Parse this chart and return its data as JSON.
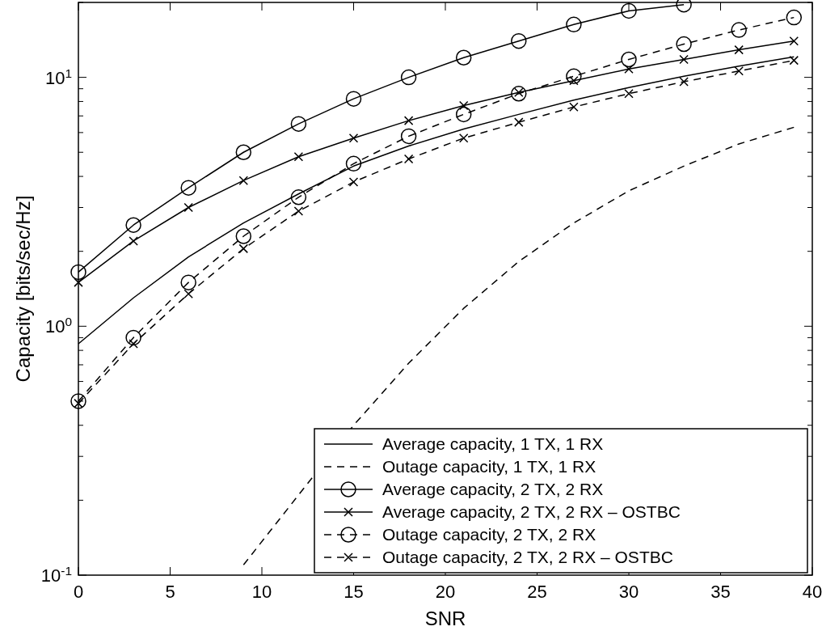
{
  "chart_data": {
    "type": "line",
    "xlabel": "SNR",
    "ylabel": "Capacity [bits/sec/Hz]",
    "log": "y",
    "xlim": [
      0,
      40
    ],
    "ylim": [
      0.1,
      20
    ],
    "xticks": [
      0,
      5,
      10,
      15,
      20,
      25,
      30,
      35,
      40
    ],
    "yticks": [
      {
        "value": 0.1,
        "label": "10$^{-1}$"
      },
      {
        "value": 0.2,
        "label": null
      },
      {
        "value": 0.3,
        "label": null
      },
      {
        "value": 0.4,
        "label": null
      },
      {
        "value": 0.5,
        "label": null
      },
      {
        "value": 0.6,
        "label": null
      },
      {
        "value": 0.7,
        "label": null
      },
      {
        "value": 0.8,
        "label": null
      },
      {
        "value": 0.9,
        "label": null
      },
      {
        "value": 1,
        "label": "10$^{0}$"
      },
      {
        "value": 2,
        "label": null
      },
      {
        "value": 3,
        "label": null
      },
      {
        "value": 4,
        "label": null
      },
      {
        "value": 5,
        "label": null
      },
      {
        "value": 6,
        "label": null
      },
      {
        "value": 7,
        "label": null
      },
      {
        "value": 8,
        "label": null
      },
      {
        "value": 9,
        "label": null
      },
      {
        "value": 10,
        "label": "10$^{1}$"
      },
      {
        "value": 20,
        "label": null
      }
    ],
    "grid": false,
    "legend": "bottom right",
    "series": [
      {
        "name": "Average capacity, 1 TX, 1 RX",
        "color": "#000000",
        "marker": "none",
        "line_style": "solid",
        "x": [
          0,
          3,
          6,
          9,
          12,
          15,
          18,
          21,
          24,
          27,
          30,
          33,
          36,
          39
        ],
        "values": [
          0.85,
          1.3,
          1.9,
          2.6,
          3.4,
          4.4,
          5.3,
          6.2,
          7.1,
          8.1,
          9.1,
          10.1,
          11.1,
          12.1
        ]
      },
      {
        "name": "Outage capacity, 1 TX, 1 RX",
        "color": "#000000",
        "marker": "none",
        "line_style": "dashed",
        "x": [
          9,
          12,
          15,
          18,
          21,
          24,
          27,
          30,
          33,
          36,
          39
        ],
        "values": [
          0.11,
          0.21,
          0.4,
          0.71,
          1.18,
          1.82,
          2.6,
          3.5,
          4.4,
          5.4,
          6.3
        ]
      },
      {
        "name": "Average capacity, 2 TX, 2 RX",
        "color": "#000000",
        "marker": "circle",
        "line_style": "solid",
        "x": [
          0,
          3,
          6,
          9,
          12,
          15,
          18,
          21,
          24,
          27,
          30,
          33
        ],
        "values": [
          1.65,
          2.55,
          3.6,
          5.0,
          6.5,
          8.2,
          10,
          12,
          14,
          16.3,
          18.5,
          19.6
        ]
      },
      {
        "name": "Average capacity, 2 TX, 2 RX – OSTBC",
        "color": "#000000",
        "marker": "cross",
        "line_style": "solid",
        "x": [
          0,
          3,
          6,
          9,
          12,
          15,
          18,
          21,
          24,
          27,
          30,
          33,
          36,
          39
        ],
        "values": [
          1.5,
          2.2,
          3.0,
          3.85,
          4.8,
          5.7,
          6.7,
          7.7,
          8.7,
          9.7,
          10.8,
          11.8,
          12.9,
          14.0
        ]
      },
      {
        "name": "Outage capacity, 2 TX, 2 RX",
        "color": "#000000",
        "marker": "circle",
        "line_style": "dashed",
        "x": [
          0,
          3,
          6,
          9,
          12,
          15,
          18,
          21,
          24,
          27,
          30,
          33,
          36,
          39
        ],
        "values": [
          0.5,
          0.9,
          1.5,
          2.3,
          3.3,
          4.5,
          5.8,
          7.1,
          8.6,
          10.1,
          11.8,
          13.6,
          15.5,
          17.4
        ]
      },
      {
        "name": "Outage capacity, 2 TX, 2 RX – OSTBC",
        "color": "#000000",
        "marker": "cross",
        "line_style": "dashed",
        "x": [
          0,
          3,
          6,
          9,
          12,
          15,
          18,
          21,
          24,
          27,
          30,
          33,
          36,
          39
        ],
        "values": [
          0.49,
          0.85,
          1.35,
          2.05,
          2.9,
          3.8,
          4.7,
          5.7,
          6.6,
          7.6,
          8.6,
          9.6,
          10.6,
          11.7
        ]
      }
    ]
  }
}
